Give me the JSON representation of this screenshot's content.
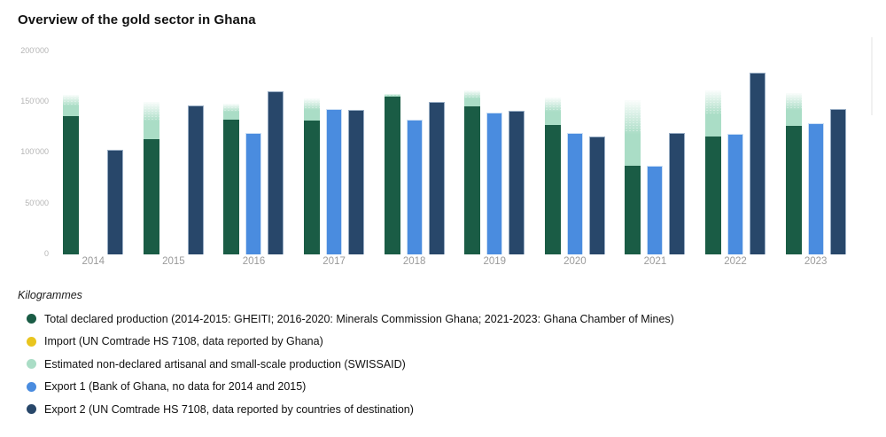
{
  "title": "Overview of the gold sector in Ghana",
  "y_axis": {
    "unit_label": "Kilogrammes",
    "ticks": [
      "200'000",
      "150'000",
      "100'000",
      "50'000",
      "0"
    ],
    "tick_color": "#b5b5b5"
  },
  "x_axis": {
    "label_color": "#9a9a9a"
  },
  "chart_data": {
    "type": "bar",
    "title": "Overview of the gold sector in Ghana",
    "unit": "Kilogrammes",
    "ylim": [
      0,
      200000
    ],
    "grid": false,
    "legend_position": "bottom-left",
    "categories": [
      "2014",
      "2015",
      "2016",
      "2017",
      "2018",
      "2019",
      "2020",
      "2021",
      "2022",
      "2023"
    ],
    "series": [
      {
        "name": "Total declared production (2014-2015: GHEITI; 2016-2020: Minerals Commission Ghana; 2021-2023: Ghana Chamber of Mines)",
        "color": "#1a5c45",
        "values": [
          136000,
          113000,
          132000,
          131000,
          155000,
          145000,
          127000,
          87000,
          116000,
          126000
        ]
      },
      {
        "name": "Import (UN Comtrade HS 7108, data reported by Ghana)",
        "color": "#e9c51f",
        "visible_in_chart": false,
        "values": [
          null,
          null,
          null,
          null,
          null,
          null,
          null,
          null,
          null,
          null
        ]
      },
      {
        "name": "Estimated non-declared artisanal and small-scale production (SWISSAID)",
        "color": "#aaddc6",
        "stacked_on": "Total declared production",
        "values": [
          21000,
          37000,
          16000,
          22000,
          2000,
          16000,
          27000,
          64000,
          45000,
          32000
        ],
        "stack_top_values": [
          157000,
          150000,
          148000,
          153000,
          157000,
          161000,
          154000,
          151000,
          161000,
          158000
        ]
      },
      {
        "name": "Export 1 (Bank of Ghana, no data for 2014 and 2015)",
        "color": "#4a8cdf",
        "values": [
          null,
          null,
          119000,
          143000,
          132000,
          139000,
          119000,
          87000,
          118000,
          129000
        ]
      },
      {
        "name": "Export 2 (UN Comtrade HS 7108, data reported by countries of destination)",
        "color": "#28476a",
        "values": [
          103000,
          146000,
          160000,
          142000,
          150000,
          141000,
          116000,
          119000,
          178000,
          143000
        ]
      }
    ]
  },
  "legend": {
    "items": [
      {
        "label": "Total declared production (2014-2015: GHEITI; 2016-2020: Minerals Commission Ghana; 2021-2023: Ghana Chamber of Mines)",
        "color": "#1a5c45"
      },
      {
        "label": "Import (UN Comtrade HS 7108, data reported by Ghana)",
        "color": "#e9c51f"
      },
      {
        "label": "Estimated non-declared artisanal and small-scale production (SWISSAID)",
        "color": "#aaddc6"
      },
      {
        "label": "Export 1 (Bank of Ghana, no data for 2014 and 2015)",
        "color": "#4a8cdf"
      },
      {
        "label": "Export 2 (UN Comtrade HS 7108, data reported by countries of destination)",
        "color": "#28476a"
      }
    ]
  }
}
